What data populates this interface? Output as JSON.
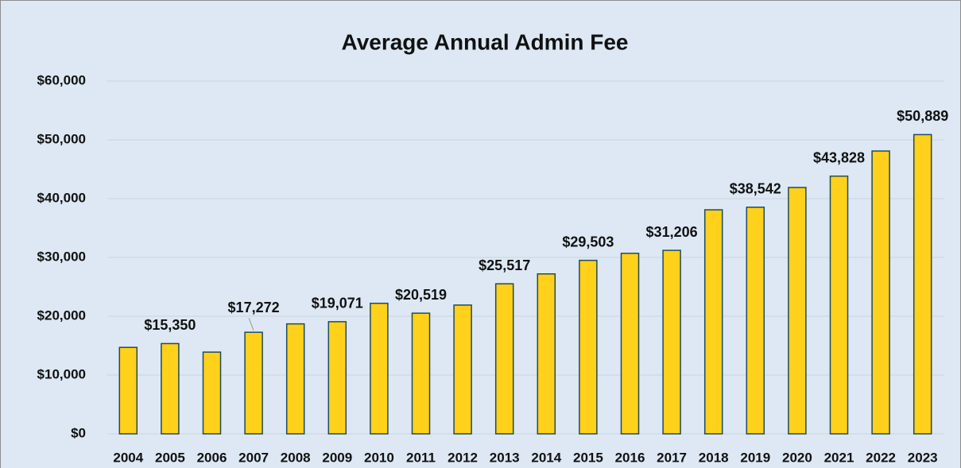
{
  "chart_data": {
    "type": "bar",
    "title": "Average Annual Admin Fee",
    "categories": [
      "2004",
      "2005",
      "2006",
      "2007",
      "2008",
      "2009",
      "2010",
      "2011",
      "2012",
      "2013",
      "2014",
      "2015",
      "2016",
      "2017",
      "2018",
      "2019",
      "2020",
      "2021",
      "2022",
      "2023"
    ],
    "values": [
      14700,
      15350,
      13900,
      17272,
      18700,
      19071,
      22200,
      20519,
      21900,
      25517,
      27200,
      29503,
      30700,
      31206,
      38100,
      38542,
      41900,
      43828,
      48100,
      50889
    ],
    "value_labels": [
      null,
      "$15,350",
      null,
      "$17,272",
      null,
      "$19,071",
      null,
      "$20,519",
      null,
      "$25,517",
      null,
      "$29,503",
      null,
      "$31,206",
      null,
      "$38,542",
      null,
      "$43,828",
      null,
      "$50,889"
    ],
    "color": "#ffd11a",
    "ylim": [
      0,
      60000
    ],
    "yticks": [
      {
        "value": 0,
        "label": "$0"
      },
      {
        "value": 10000,
        "label": "$10,000"
      },
      {
        "value": 20000,
        "label": "$20,000"
      },
      {
        "value": 30000,
        "label": "$30,000"
      },
      {
        "value": 40000,
        "label": "$40,000"
      },
      {
        "value": 50000,
        "label": "$50,000"
      },
      {
        "value": 60000,
        "label": "$60,000"
      }
    ],
    "grid": true
  }
}
